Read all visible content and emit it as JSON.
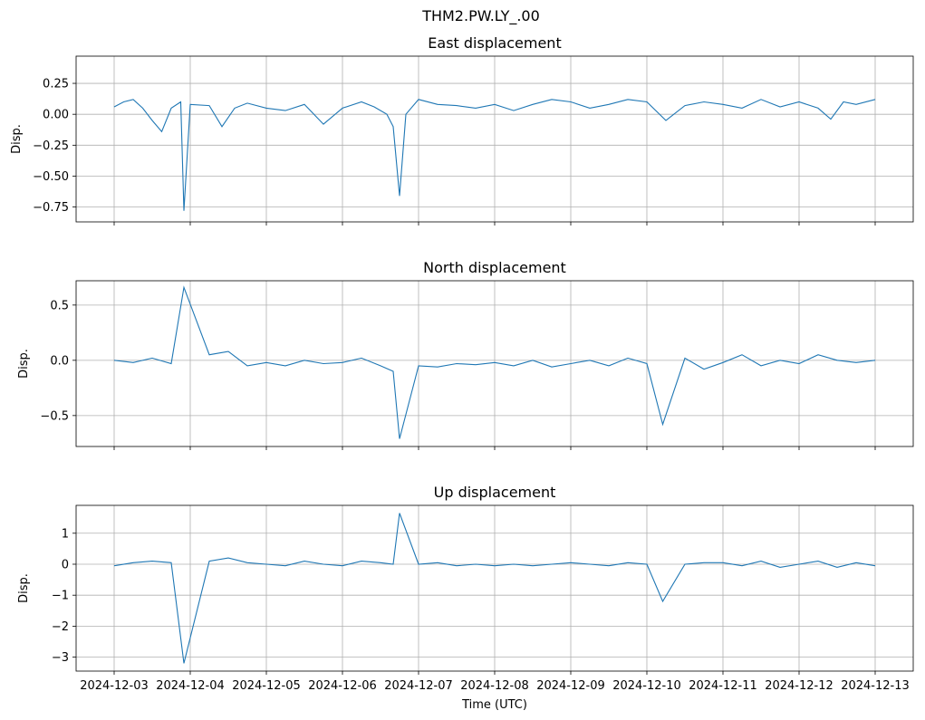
{
  "suptitle": "THM2.PW.LY_.00",
  "xlabel": "Time (UTC)",
  "x_ticks": [
    "2024-12-03",
    "2024-12-04",
    "2024-12-05",
    "2024-12-06",
    "2024-12-07",
    "2024-12-08",
    "2024-12-09",
    "2024-12-10",
    "2024-12-11",
    "2024-12-12",
    "2024-12-13"
  ],
  "colors": {
    "line": "#1f77b4",
    "grid": "#b0b0b0",
    "axes": "#000000"
  },
  "chart_data": [
    {
      "type": "line",
      "title": "East displacement",
      "ylabel": "Disp.",
      "xlim": [
        "2024-12-02 12:00",
        "2024-12-13 12:00"
      ],
      "ylim": [
        -0.87,
        0.47
      ],
      "yticks": [
        0.25,
        0.0,
        -0.25,
        -0.5,
        -0.75
      ],
      "ytick_labels": [
        "0.25",
        "0.00",
        "−0.25",
        "−0.50",
        "−0.75"
      ],
      "grid": true,
      "x": [
        "2024-12-03 00:00",
        "2024-12-03 03:00",
        "2024-12-03 06:00",
        "2024-12-03 09:00",
        "2024-12-03 12:00",
        "2024-12-03 15:00",
        "2024-12-03 18:00",
        "2024-12-03 21:00",
        "2024-12-03 22:00",
        "2024-12-04 00:00",
        "2024-12-04 06:00",
        "2024-12-04 10:00",
        "2024-12-04 14:00",
        "2024-12-04 18:00",
        "2024-12-05 00:00",
        "2024-12-05 06:00",
        "2024-12-05 12:00",
        "2024-12-05 18:00",
        "2024-12-06 00:00",
        "2024-12-06 06:00",
        "2024-12-06 10:00",
        "2024-12-06 14:00",
        "2024-12-06 16:00",
        "2024-12-06 18:00",
        "2024-12-06 20:00",
        "2024-12-07 00:00",
        "2024-12-07 06:00",
        "2024-12-07 12:00",
        "2024-12-07 18:00",
        "2024-12-08 00:00",
        "2024-12-08 06:00",
        "2024-12-08 12:00",
        "2024-12-08 18:00",
        "2024-12-09 00:00",
        "2024-12-09 06:00",
        "2024-12-09 12:00",
        "2024-12-09 18:00",
        "2024-12-10 00:00",
        "2024-12-10 06:00",
        "2024-12-10 12:00",
        "2024-12-10 18:00",
        "2024-12-11 00:00",
        "2024-12-11 06:00",
        "2024-12-11 12:00",
        "2024-12-11 18:00",
        "2024-12-12 00:00",
        "2024-12-12 06:00",
        "2024-12-12 10:00",
        "2024-12-12 14:00",
        "2024-12-12 18:00",
        "2024-12-13 00:00"
      ],
      "values": [
        0.06,
        0.1,
        0.12,
        0.05,
        -0.05,
        -0.14,
        0.05,
        0.1,
        -0.78,
        0.08,
        0.07,
        -0.1,
        0.05,
        0.09,
        0.05,
        0.03,
        0.08,
        -0.08,
        0.05,
        0.1,
        0.06,
        0.0,
        -0.1,
        -0.66,
        0.0,
        0.12,
        0.08,
        0.07,
        0.05,
        0.08,
        0.03,
        0.08,
        0.12,
        0.1,
        0.05,
        0.08,
        0.12,
        0.1,
        -0.05,
        0.07,
        0.1,
        0.08,
        0.05,
        0.12,
        0.06,
        0.1,
        0.05,
        -0.04,
        0.1,
        0.08,
        0.12
      ]
    },
    {
      "type": "line",
      "title": "North displacement",
      "ylabel": "Disp.",
      "xlim": [
        "2024-12-02 12:00",
        "2024-12-13 12:00"
      ],
      "ylim": [
        -0.78,
        0.72
      ],
      "yticks": [
        0.5,
        0.0,
        -0.5
      ],
      "ytick_labels": [
        "0.5",
        "0.0",
        "−0.5"
      ],
      "grid": true,
      "x": [
        "2024-12-03 00:00",
        "2024-12-03 06:00",
        "2024-12-03 12:00",
        "2024-12-03 18:00",
        "2024-12-03 22:00",
        "2024-12-04 06:00",
        "2024-12-04 12:00",
        "2024-12-04 18:00",
        "2024-12-05 00:00",
        "2024-12-05 06:00",
        "2024-12-05 12:00",
        "2024-12-05 18:00",
        "2024-12-06 00:00",
        "2024-12-06 06:00",
        "2024-12-06 12:00",
        "2024-12-06 16:00",
        "2024-12-06 18:00",
        "2024-12-07 00:00",
        "2024-12-07 06:00",
        "2024-12-07 12:00",
        "2024-12-07 18:00",
        "2024-12-08 00:00",
        "2024-12-08 06:00",
        "2024-12-08 12:00",
        "2024-12-08 18:00",
        "2024-12-09 00:00",
        "2024-12-09 06:00",
        "2024-12-09 12:00",
        "2024-12-09 18:00",
        "2024-12-10 00:00",
        "2024-12-10 05:00",
        "2024-12-10 12:00",
        "2024-12-10 18:00",
        "2024-12-11 00:00",
        "2024-12-11 06:00",
        "2024-12-11 12:00",
        "2024-12-11 18:00",
        "2024-12-12 00:00",
        "2024-12-12 06:00",
        "2024-12-12 12:00",
        "2024-12-12 18:00",
        "2024-12-13 00:00"
      ],
      "values": [
        0.0,
        -0.02,
        0.02,
        -0.03,
        0.66,
        0.05,
        0.08,
        -0.05,
        -0.02,
        -0.05,
        0.0,
        -0.03,
        -0.02,
        0.02,
        -0.05,
        -0.1,
        -0.71,
        -0.05,
        -0.06,
        -0.03,
        -0.04,
        -0.02,
        -0.05,
        0.0,
        -0.06,
        -0.03,
        0.0,
        -0.05,
        0.02,
        -0.03,
        -0.58,
        0.02,
        -0.08,
        -0.02,
        0.05,
        -0.05,
        0.0,
        -0.03,
        0.05,
        0.0,
        -0.02,
        0.0
      ]
    },
    {
      "type": "line",
      "title": "Up displacement",
      "ylabel": "Disp.",
      "xlim": [
        "2024-12-02 12:00",
        "2024-12-13 12:00"
      ],
      "ylim": [
        -3.45,
        1.9
      ],
      "yticks": [
        1,
        0,
        -1,
        -2,
        -3
      ],
      "ytick_labels": [
        "1",
        "0",
        "−1",
        "−2",
        "−3"
      ],
      "grid": true,
      "x": [
        "2024-12-03 00:00",
        "2024-12-03 06:00",
        "2024-12-03 12:00",
        "2024-12-03 18:00",
        "2024-12-03 22:00",
        "2024-12-04 06:00",
        "2024-12-04 12:00",
        "2024-12-04 18:00",
        "2024-12-05 00:00",
        "2024-12-05 06:00",
        "2024-12-05 12:00",
        "2024-12-05 18:00",
        "2024-12-06 00:00",
        "2024-12-06 06:00",
        "2024-12-06 12:00",
        "2024-12-06 16:00",
        "2024-12-06 18:00",
        "2024-12-07 00:00",
        "2024-12-07 06:00",
        "2024-12-07 12:00",
        "2024-12-07 18:00",
        "2024-12-08 00:00",
        "2024-12-08 06:00",
        "2024-12-08 12:00",
        "2024-12-08 18:00",
        "2024-12-09 00:00",
        "2024-12-09 06:00",
        "2024-12-09 12:00",
        "2024-12-09 18:00",
        "2024-12-10 00:00",
        "2024-12-10 05:00",
        "2024-12-10 12:00",
        "2024-12-10 18:00",
        "2024-12-11 00:00",
        "2024-12-11 06:00",
        "2024-12-11 12:00",
        "2024-12-11 18:00",
        "2024-12-12 00:00",
        "2024-12-12 06:00",
        "2024-12-12 12:00",
        "2024-12-12 18:00",
        "2024-12-13 00:00"
      ],
      "values": [
        -0.05,
        0.05,
        0.1,
        0.05,
        -3.2,
        0.1,
        0.2,
        0.05,
        0.0,
        -0.05,
        0.1,
        0.0,
        -0.05,
        0.1,
        0.05,
        0.0,
        1.65,
        0.0,
        0.05,
        -0.05,
        0.0,
        -0.05,
        0.0,
        -0.05,
        0.0,
        0.05,
        0.0,
        -0.05,
        0.05,
        0.0,
        -1.2,
        0.0,
        0.05,
        0.05,
        -0.05,
        0.1,
        -0.1,
        0.0,
        0.1,
        -0.1,
        0.05,
        -0.05
      ]
    }
  ]
}
